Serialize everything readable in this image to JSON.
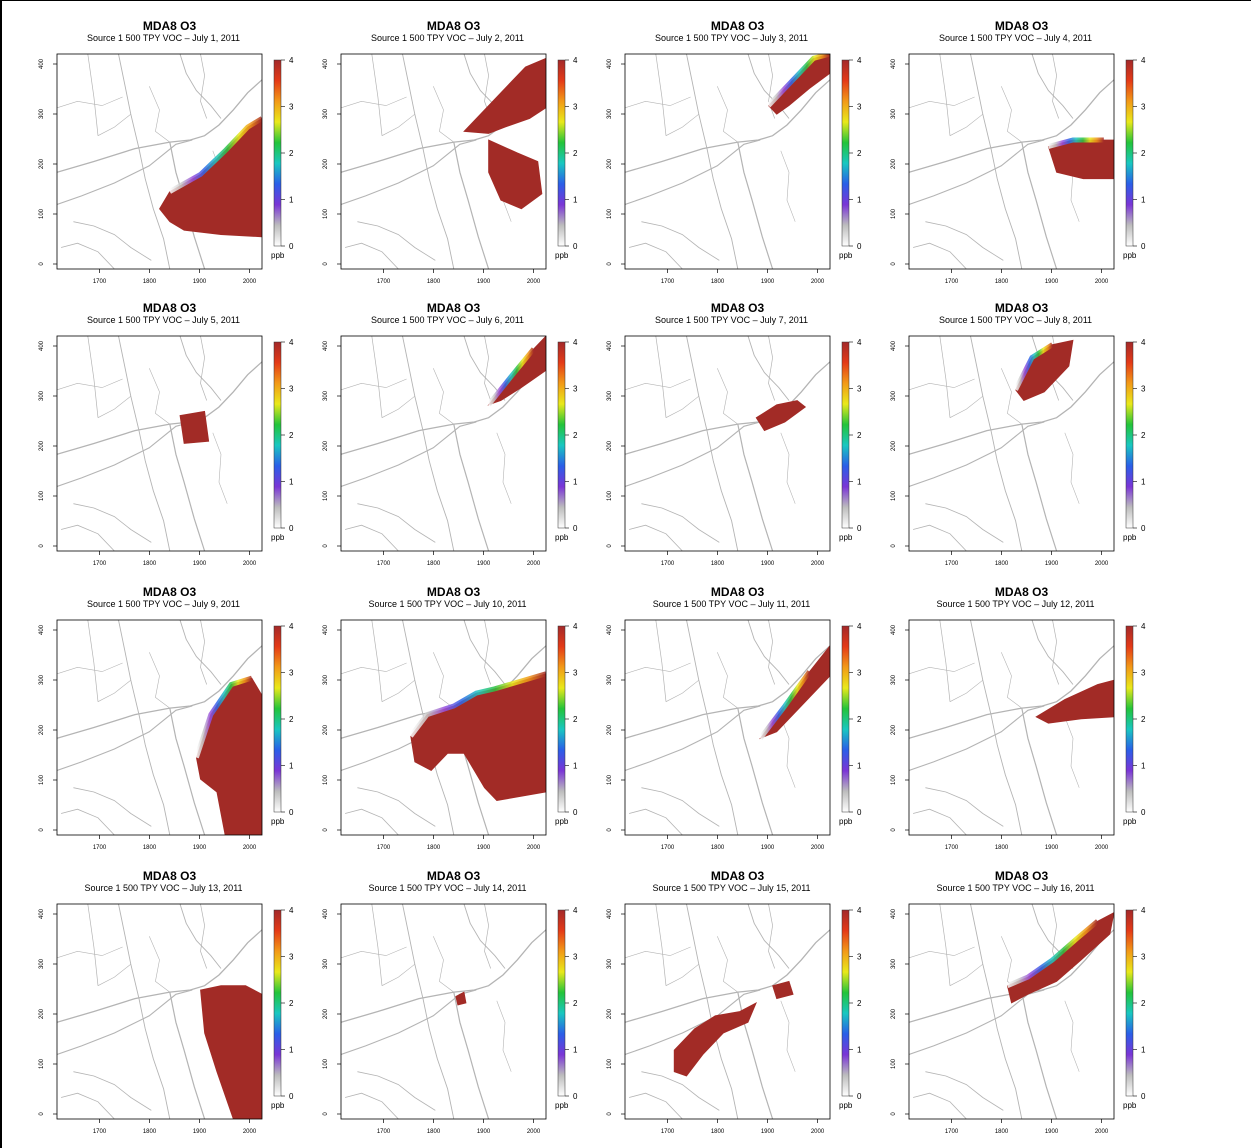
{
  "figure": {
    "panels": [
      {
        "title": "MDA8 O3",
        "subtitle": "Source 1 500 TPY VOC – July 1, 2011"
      },
      {
        "title": "MDA8 O3",
        "subtitle": "Source 1 500 TPY VOC – July 2, 2011"
      },
      {
        "title": "MDA8 O3",
        "subtitle": "Source 1 500 TPY VOC – July 3, 2011"
      },
      {
        "title": "MDA8 O3",
        "subtitle": "Source 1 500 TPY VOC – July 4, 2011"
      },
      {
        "title": "MDA8 O3",
        "subtitle": "Source 1 500 TPY VOC – July 5, 2011"
      },
      {
        "title": "MDA8 O3",
        "subtitle": "Source 1 500 TPY VOC – July 6, 2011"
      },
      {
        "title": "MDA8 O3",
        "subtitle": "Source 1 500 TPY VOC – July 7, 2011"
      },
      {
        "title": "MDA8 O3",
        "subtitle": "Source 1 500 TPY VOC – July 8, 2011"
      },
      {
        "title": "MDA8 O3",
        "subtitle": "Source 1 500 TPY VOC – July 9, 2011"
      },
      {
        "title": "MDA8 O3",
        "subtitle": "Source 1 500 TPY VOC – July 10, 2011"
      },
      {
        "title": "MDA8 O3",
        "subtitle": "Source 1 500 TPY VOC – July 11, 2011"
      },
      {
        "title": "MDA8 O3",
        "subtitle": "Source 1 500 TPY VOC – July 12, 2011"
      },
      {
        "title": "MDA8 O3",
        "subtitle": "Source 1 500 TPY VOC – July 13, 2011"
      },
      {
        "title": "MDA8 O3",
        "subtitle": "Source 1 500 TPY VOC – July 14, 2011"
      },
      {
        "title": "MDA8 O3",
        "subtitle": "Source 1 500 TPY VOC – July 15, 2011"
      },
      {
        "title": "MDA8 O3",
        "subtitle": "Source 1 500 TPY VOC – July 16, 2011"
      }
    ]
  },
  "chart_data": {
    "type": "heatmap",
    "layout": "4x4 small multiples",
    "x_ticks": [
      1700,
      1800,
      1900,
      2000
    ],
    "x_tick_labels": [
      "1700",
      "1800",
      "1900",
      "2000"
    ],
    "y_ticks": [
      0,
      100,
      200,
      300,
      400
    ],
    "y_tick_labels": [
      "0",
      "100",
      "200",
      "300",
      "400"
    ],
    "xlim": [
      1615,
      2025
    ],
    "ylim": [
      -10,
      420
    ],
    "colorbar": {
      "ticks": [
        0,
        1,
        2,
        3,
        4
      ],
      "tick_labels": [
        "0",
        "1",
        "2",
        "3",
        "4"
      ],
      "unit": "ppb",
      "range": [
        0,
        4
      ],
      "colors": [
        "#ffffff",
        "#bdbdbd",
        "#7a35d6",
        "#2a5ee8",
        "#19c7c1",
        "#23c43a",
        "#e9e91a",
        "#f29a17",
        "#e43a17",
        "#a3292a"
      ]
    },
    "background_color": "#ffffff",
    "boundary_color": "#b4b4b4",
    "ozone_color": "#a22b26"
  }
}
